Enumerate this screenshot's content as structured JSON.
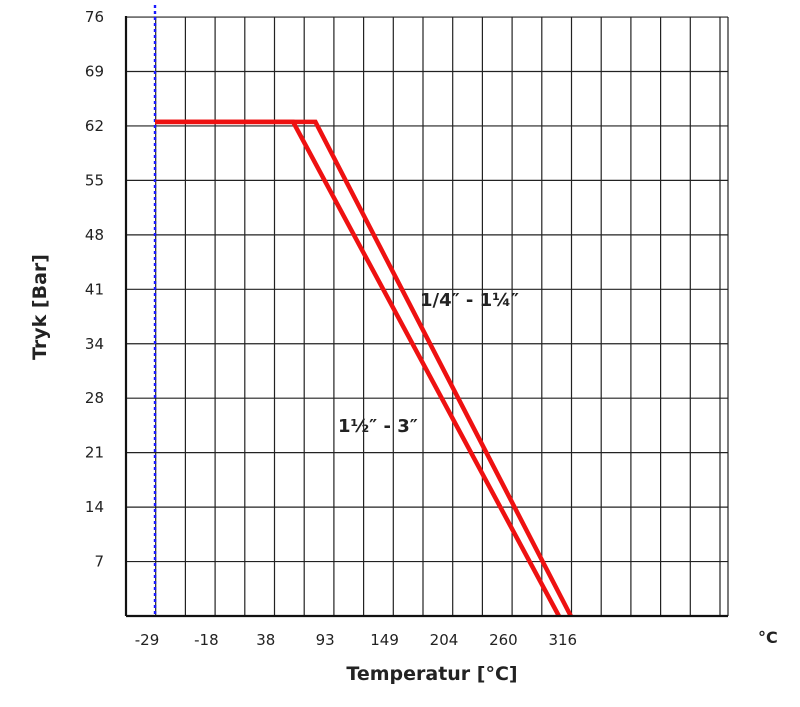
{
  "chart_data": {
    "type": "line",
    "xlabel": "Temperatur [°C]",
    "ylabel": "Tryk [Bar]",
    "x_unit": "°C",
    "x_ticks": [
      "-29",
      "-18",
      "38",
      "93",
      "149",
      "204",
      "260",
      "316"
    ],
    "y_ticks": [
      "7",
      "14",
      "21",
      "28",
      "34",
      "41",
      "48",
      "55",
      "62",
      "69",
      "76"
    ],
    "grid": true,
    "reference_line": {
      "x_tick": "-29",
      "style": "dotted",
      "color": "#1a1aff"
    },
    "series": [
      {
        "name": "1/4\" - 1¼\"",
        "color": "#ee1111",
        "points": [
          {
            "x_tick_pos": 0,
            "y": 62.7
          },
          {
            "x_tick_pos": 5.4,
            "y": 62.7
          },
          {
            "x_tick_pos": 14.0,
            "y": 0
          }
        ]
      },
      {
        "name": "1½\" - 3\"",
        "color": "#ee1111",
        "points": [
          {
            "x_tick_pos": 0,
            "y": 62.7
          },
          {
            "x_tick_pos": 4.65,
            "y": 62.7
          },
          {
            "x_tick_pos": 13.6,
            "y": 0
          }
        ]
      }
    ],
    "annotations": [
      {
        "text": "1/4″ - 1¼″"
      },
      {
        "text": "1½″ - 3″"
      }
    ]
  }
}
